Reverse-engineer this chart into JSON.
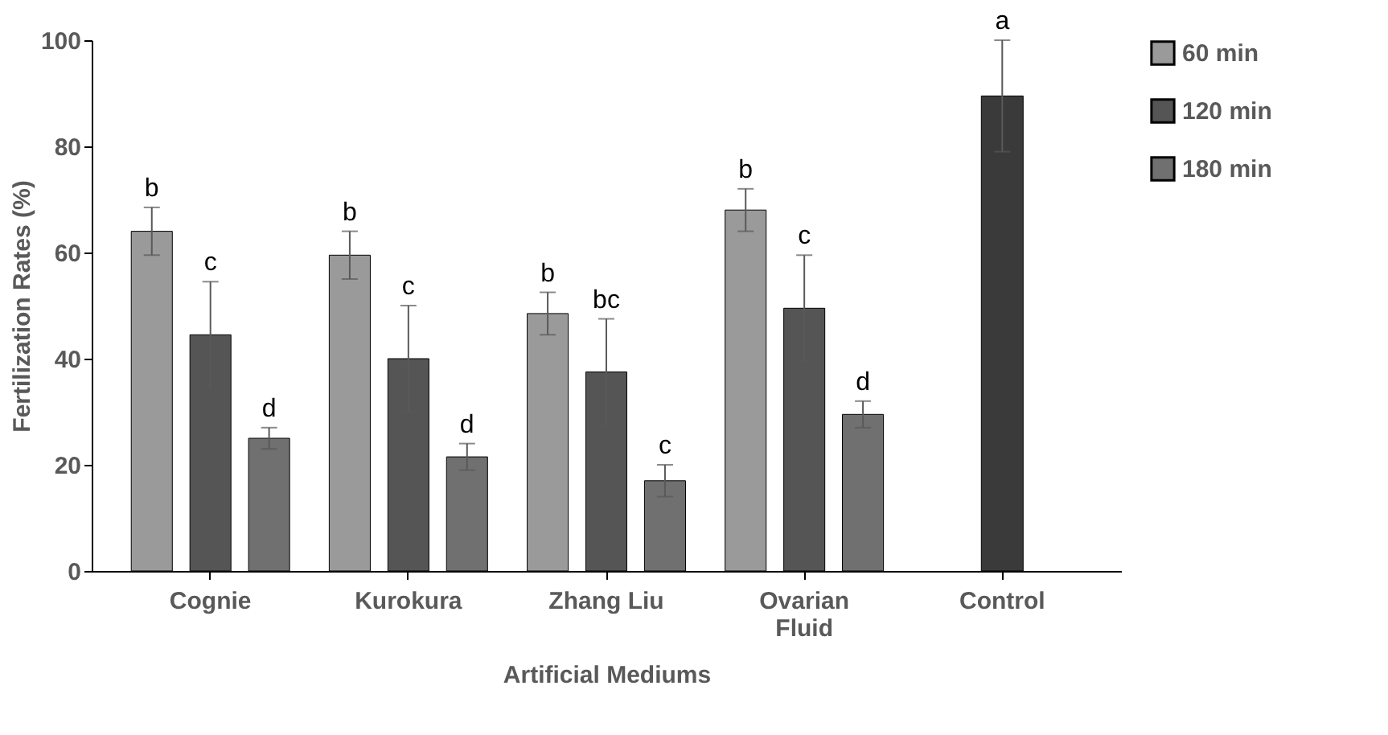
{
  "chart_data": {
    "type": "bar",
    "xlabel": "Artificial Mediums",
    "ylabel": "Fertilization Rates (%)",
    "categories": [
      "Cognie",
      "Kurokura",
      "Zhang Liu",
      "Ovarian Fluid",
      "Control"
    ],
    "series": [
      {
        "name": "60 min",
        "color": "#9a9a9a",
        "values": [
          64,
          59.5,
          48.5,
          68,
          null
        ],
        "errors": [
          4.5,
          4.5,
          4,
          4,
          null
        ]
      },
      {
        "name": "120 min",
        "color": "#555555",
        "values": [
          44.5,
          40,
          37.5,
          49.5,
          null
        ],
        "errors": [
          10,
          10,
          10,
          10,
          null
        ]
      },
      {
        "name": "180 min",
        "color": "#707070",
        "values": [
          25,
          21.5,
          17,
          29.5,
          null
        ],
        "errors": [
          2,
          2.5,
          3,
          2.5,
          null
        ]
      },
      {
        "color": "#3a3a3a",
        "values": [
          null,
          null,
          null,
          null,
          89.5
        ],
        "errors": [
          null,
          null,
          null,
          null,
          10.5
        ]
      }
    ],
    "ylim": [
      0,
      100
    ],
    "yticks": [
      0,
      20,
      40,
      60,
      80,
      100
    ],
    "grid": false,
    "legend": "right",
    "annotations": [
      "b",
      "c",
      "d",
      "b",
      "c",
      "d",
      "b",
      "bc",
      "c",
      "b",
      "c",
      "d",
      "a"
    ]
  }
}
